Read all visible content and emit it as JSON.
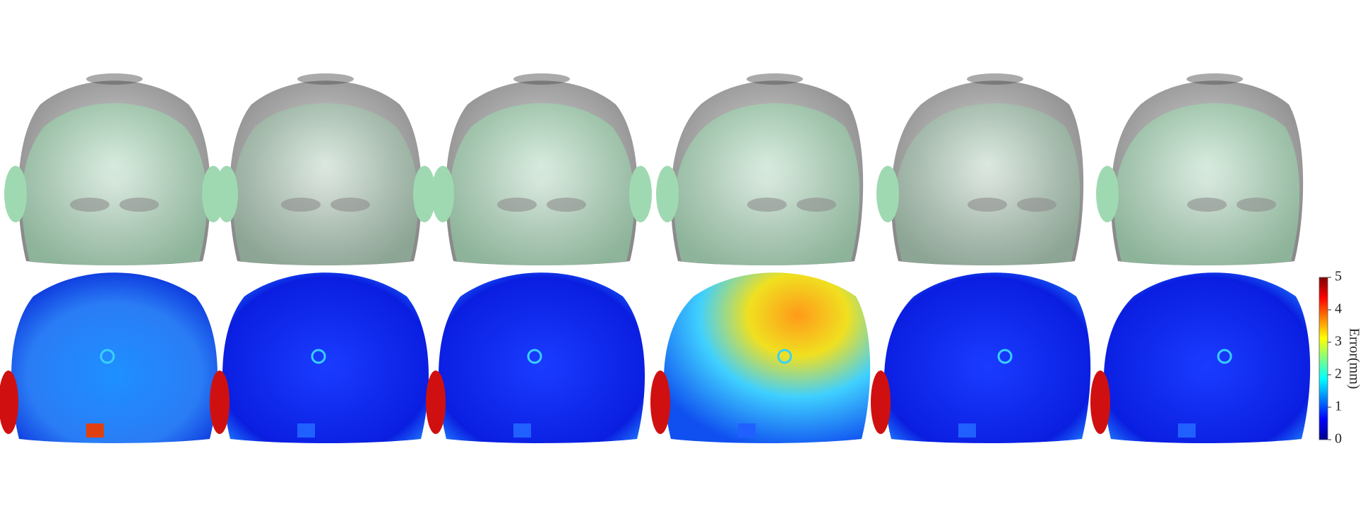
{
  "colorbar": {
    "label": "Error(mm)",
    "range": [
      0,
      5
    ],
    "ticks": [
      0,
      1,
      2,
      3,
      4,
      5
    ]
  }
}
